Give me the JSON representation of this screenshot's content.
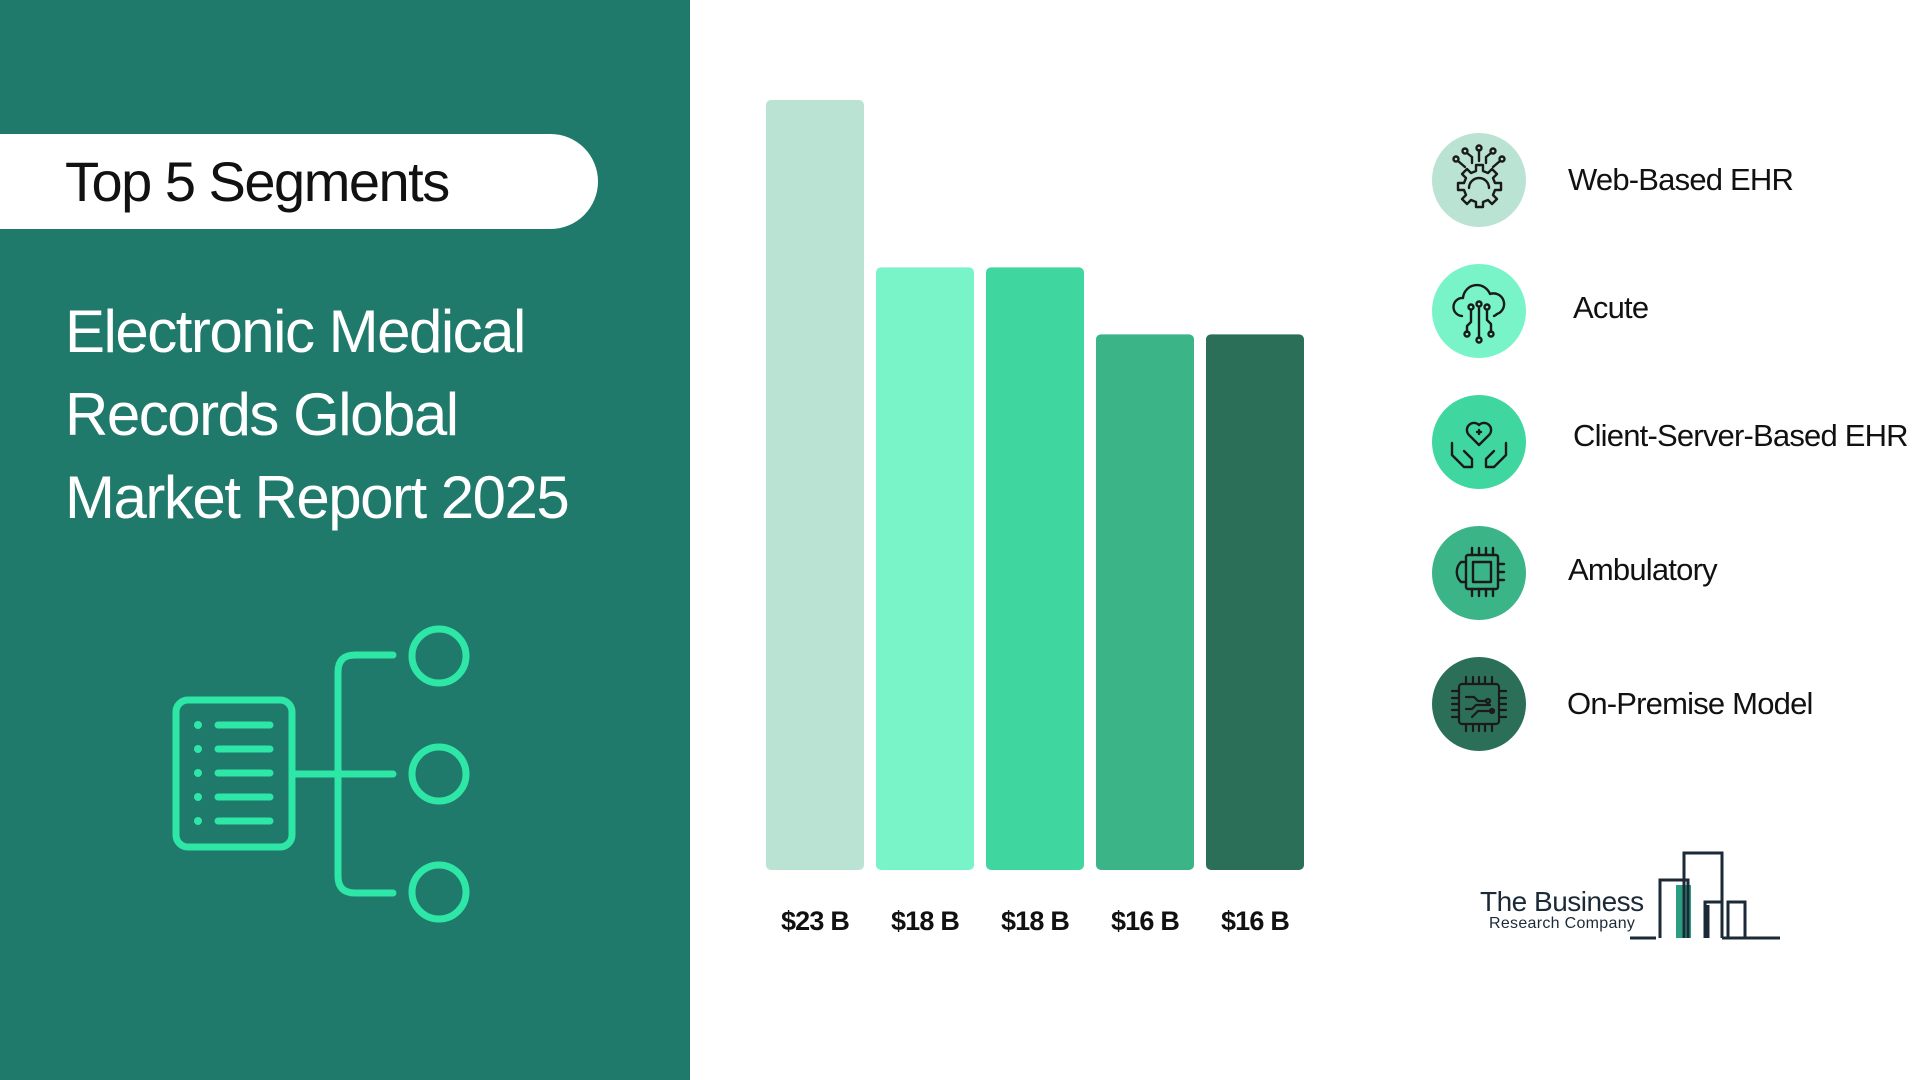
{
  "header": {
    "pill_label": "Top 5 Segments",
    "title_lines": [
      "Electronic Medical",
      "Records Global",
      "Market Report 2025"
    ]
  },
  "chart_data": {
    "type": "bar",
    "categories": [
      "Web-Based EHR",
      "Acute",
      "Client-Server-Based EHR",
      "Ambulatory",
      "On-Premise Model"
    ],
    "values": [
      23,
      18,
      18,
      16,
      16
    ],
    "value_labels": [
      "$23 B",
      "$18 B",
      "$18 B",
      "$16 B",
      "$16 B"
    ],
    "unit": "$ B",
    "colors": [
      "#bae3d4",
      "#79f4c8",
      "#40d69f",
      "#3bb487",
      "#2c6f59"
    ],
    "ylim": [
      0,
      23
    ],
    "grid": false
  },
  "segments": [
    {
      "label": "Web-Based EHR",
      "icon": "gear-circuit-icon",
      "color": "#bae3d4"
    },
    {
      "label": "Acute",
      "icon": "cloud-circuit-icon",
      "color": "#79f4c8"
    },
    {
      "label": "Client-Server-Based EHR",
      "icon": "hands-heart-icon",
      "color": "#40d69f"
    },
    {
      "label": "Ambulatory",
      "icon": "gear-chip-icon",
      "color": "#3bb487"
    },
    {
      "label": "On-Premise Model",
      "icon": "circuit-chip-icon",
      "color": "#2c6f59"
    }
  ],
  "logo": {
    "name": "The Business",
    "subtitle": "Research Company"
  },
  "colors": {
    "panel": "#1f7a6b",
    "accent": "#2ee6a6"
  }
}
